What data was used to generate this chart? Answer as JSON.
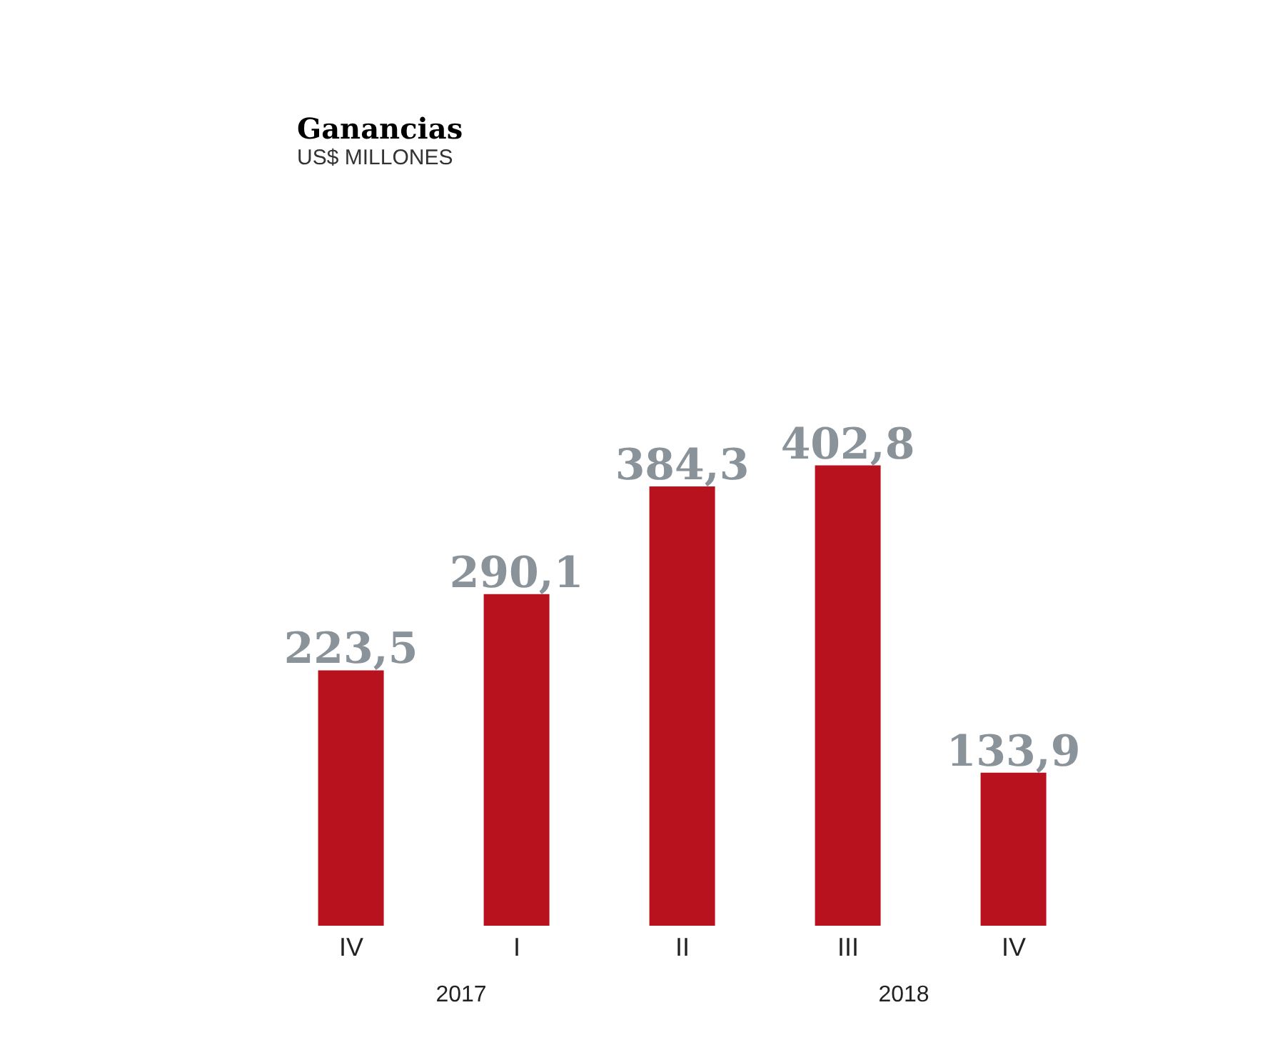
{
  "chart_data": {
    "type": "bar",
    "title": "Ganancias",
    "subtitle": "US$ MILLONES",
    "categories": [
      "IV",
      "I",
      "II",
      "III",
      "IV"
    ],
    "values": [
      223.5,
      290.1,
      384.3,
      402.8,
      133.9
    ],
    "color": "#b8121f",
    "value_labels": [
      "223,5",
      "290,1",
      "384,3",
      "402,8",
      "133,9"
    ],
    "annotations": [
      "2017",
      "2018"
    ]
  }
}
